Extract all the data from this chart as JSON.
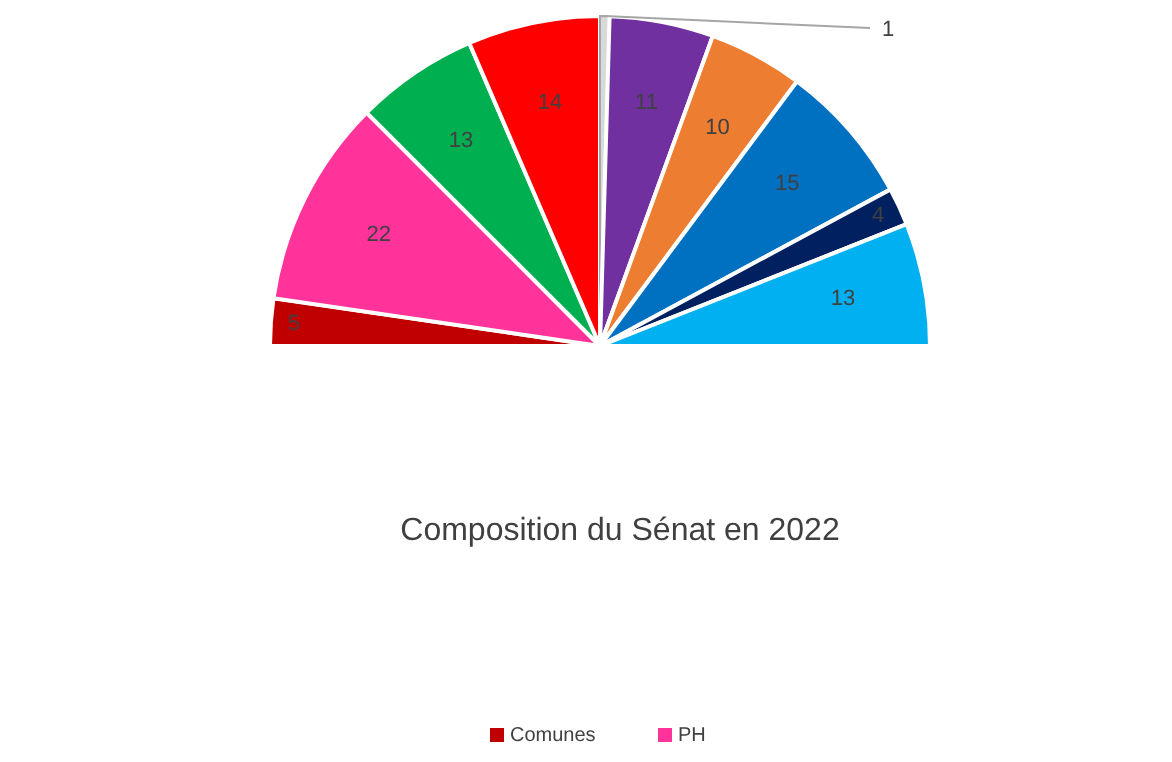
{
  "chart_data": {
    "type": "pie",
    "title": "Composition du Sénat en  2022",
    "categories": [
      "Comunes",
      "PH",
      null,
      null,
      null,
      null,
      null,
      null,
      null,
      null
    ],
    "values": [
      5,
      22,
      13,
      14,
      1,
      11,
      10,
      15,
      4,
      13
    ],
    "colors": [
      "#c00000",
      "#ff3399",
      "#00b050",
      "#ff0000",
      "#d9d9d9",
      "#7030a0",
      "#ed7d31",
      "#0070c0",
      "#002060",
      "#00b0f0"
    ],
    "data_labels": true,
    "legend": "bottom"
  }
}
